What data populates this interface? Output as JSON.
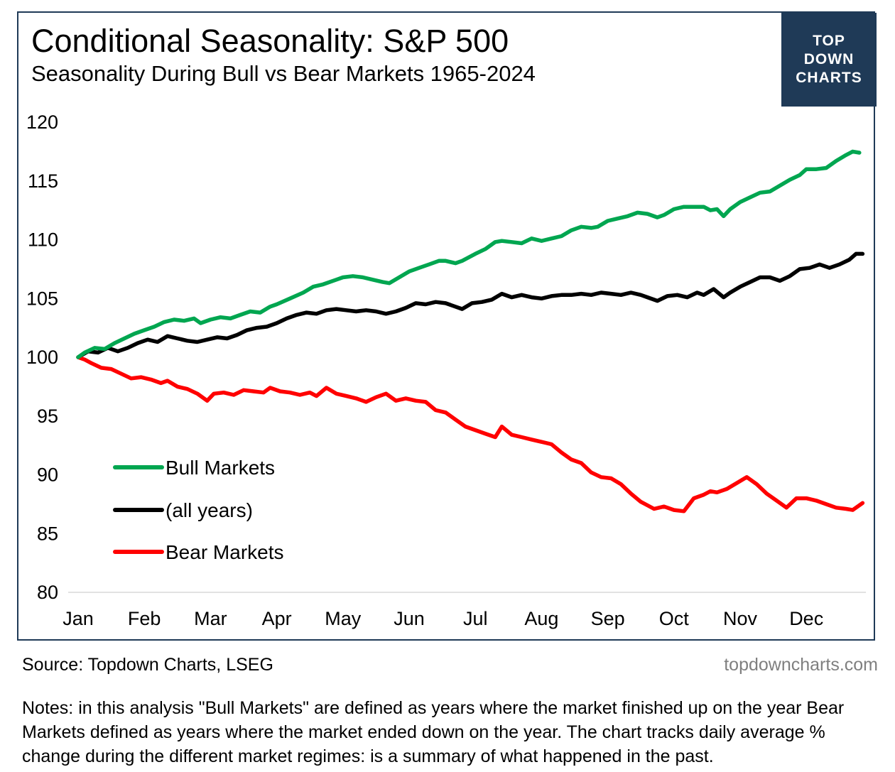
{
  "header": {
    "title": "Conditional Seasonality: S&P 500",
    "subtitle": "Seasonality During Bull vs Bear Markets 1965-2024"
  },
  "logo": {
    "line1": "TOP",
    "line2": "DOWN",
    "line3": "CHARTS"
  },
  "footer": {
    "source": "Source: Topdown Charts, LSEG",
    "site": "topdowncharts.com",
    "notes": "Notes: in this analysis \"Bull Markets\" are defined as years where the market finished up on the year Bear Markets defined as years where the market ended down on the year.  The chart tracks daily average % change during the different market regimes: is a summary of what happened in the past."
  },
  "colors": {
    "bull": "#00a650",
    "all": "#000000",
    "bear": "#ff0000",
    "brand": "#1f3a57"
  },
  "chart_data": {
    "type": "line",
    "title": "Conditional Seasonality: S&P 500",
    "subtitle": "Seasonality During Bull vs Bear Markets 1965-2024",
    "xlabel": "",
    "ylabel": "",
    "categories": [
      "Jan",
      "Feb",
      "Mar",
      "Apr",
      "May",
      "Jun",
      "Jul",
      "Aug",
      "Sep",
      "Oct",
      "Nov",
      "Dec"
    ],
    "ylim": [
      80,
      120
    ],
    "yticks": [
      80,
      85,
      90,
      95,
      100,
      105,
      110,
      115,
      120
    ],
    "grid": false,
    "legend_position": "bottom-left",
    "x_unit": "month (0 = start of Jan)",
    "series": [
      {
        "name": "Bull Markets",
        "color": "#00a650",
        "points": [
          [
            0,
            100
          ],
          [
            0.1,
            100.4
          ],
          [
            0.25,
            100.8
          ],
          [
            0.4,
            100.7
          ],
          [
            0.55,
            101.2
          ],
          [
            0.7,
            101.6
          ],
          [
            0.85,
            102.0
          ],
          [
            1.0,
            102.3
          ],
          [
            1.15,
            102.6
          ],
          [
            1.3,
            103.0
          ],
          [
            1.45,
            103.2
          ],
          [
            1.6,
            103.1
          ],
          [
            1.75,
            103.3
          ],
          [
            1.85,
            102.9
          ],
          [
            2.0,
            103.2
          ],
          [
            2.15,
            103.4
          ],
          [
            2.3,
            103.3
          ],
          [
            2.45,
            103.6
          ],
          [
            2.6,
            103.9
          ],
          [
            2.75,
            103.8
          ],
          [
            2.9,
            104.3
          ],
          [
            3.0,
            104.5
          ],
          [
            3.2,
            105.0
          ],
          [
            3.4,
            105.5
          ],
          [
            3.55,
            106.0
          ],
          [
            3.7,
            106.2
          ],
          [
            3.9,
            106.6
          ],
          [
            4.0,
            106.8
          ],
          [
            4.15,
            106.9
          ],
          [
            4.3,
            106.8
          ],
          [
            4.45,
            106.6
          ],
          [
            4.6,
            106.4
          ],
          [
            4.7,
            106.3
          ],
          [
            4.85,
            106.8
          ],
          [
            5.0,
            107.3
          ],
          [
            5.15,
            107.6
          ],
          [
            5.3,
            107.9
          ],
          [
            5.45,
            108.2
          ],
          [
            5.55,
            108.2
          ],
          [
            5.7,
            108.0
          ],
          [
            5.8,
            108.2
          ],
          [
            6.0,
            108.8
          ],
          [
            6.15,
            109.2
          ],
          [
            6.3,
            109.8
          ],
          [
            6.4,
            109.9
          ],
          [
            6.55,
            109.8
          ],
          [
            6.7,
            109.7
          ],
          [
            6.85,
            110.1
          ],
          [
            7.0,
            109.9
          ],
          [
            7.15,
            110.1
          ],
          [
            7.3,
            110.3
          ],
          [
            7.45,
            110.8
          ],
          [
            7.6,
            111.1
          ],
          [
            7.75,
            111.0
          ],
          [
            7.85,
            111.1
          ],
          [
            8.0,
            111.6
          ],
          [
            8.15,
            111.8
          ],
          [
            8.3,
            112.0
          ],
          [
            8.45,
            112.3
          ],
          [
            8.6,
            112.2
          ],
          [
            8.75,
            111.9
          ],
          [
            8.85,
            112.1
          ],
          [
            9.0,
            112.6
          ],
          [
            9.15,
            112.8
          ],
          [
            9.3,
            112.8
          ],
          [
            9.45,
            112.8
          ],
          [
            9.55,
            112.5
          ],
          [
            9.65,
            112.6
          ],
          [
            9.75,
            112.0
          ],
          [
            9.85,
            112.6
          ],
          [
            10.0,
            113.2
          ],
          [
            10.15,
            113.6
          ],
          [
            10.3,
            114.0
          ],
          [
            10.45,
            114.1
          ],
          [
            10.6,
            114.6
          ],
          [
            10.75,
            115.1
          ],
          [
            10.9,
            115.5
          ],
          [
            11.0,
            116.0
          ],
          [
            11.15,
            116.0
          ],
          [
            11.3,
            116.1
          ],
          [
            11.45,
            116.7
          ],
          [
            11.6,
            117.2
          ],
          [
            11.7,
            117.5
          ],
          [
            11.8,
            117.4
          ]
        ]
      },
      {
        "name": "(all years)",
        "color": "#000000",
        "points": [
          [
            0,
            100
          ],
          [
            0.15,
            100.5
          ],
          [
            0.3,
            100.4
          ],
          [
            0.45,
            100.8
          ],
          [
            0.6,
            100.5
          ],
          [
            0.75,
            100.8
          ],
          [
            0.9,
            101.2
          ],
          [
            1.05,
            101.5
          ],
          [
            1.2,
            101.3
          ],
          [
            1.35,
            101.8
          ],
          [
            1.5,
            101.6
          ],
          [
            1.65,
            101.4
          ],
          [
            1.8,
            101.3
          ],
          [
            1.95,
            101.5
          ],
          [
            2.1,
            101.7
          ],
          [
            2.25,
            101.6
          ],
          [
            2.4,
            101.9
          ],
          [
            2.55,
            102.3
          ],
          [
            2.7,
            102.5
          ],
          [
            2.85,
            102.6
          ],
          [
            3.0,
            102.9
          ],
          [
            3.15,
            103.3
          ],
          [
            3.3,
            103.6
          ],
          [
            3.45,
            103.8
          ],
          [
            3.6,
            103.7
          ],
          [
            3.75,
            104.0
          ],
          [
            3.9,
            104.1
          ],
          [
            4.05,
            104.0
          ],
          [
            4.2,
            103.9
          ],
          [
            4.35,
            104.0
          ],
          [
            4.5,
            103.9
          ],
          [
            4.65,
            103.7
          ],
          [
            4.8,
            103.9
          ],
          [
            4.95,
            104.2
          ],
          [
            5.1,
            104.6
          ],
          [
            5.25,
            104.5
          ],
          [
            5.4,
            104.7
          ],
          [
            5.55,
            104.6
          ],
          [
            5.7,
            104.3
          ],
          [
            5.8,
            104.1
          ],
          [
            5.95,
            104.6
          ],
          [
            6.1,
            104.7
          ],
          [
            6.25,
            104.9
          ],
          [
            6.4,
            105.4
          ],
          [
            6.55,
            105.1
          ],
          [
            6.7,
            105.3
          ],
          [
            6.85,
            105.1
          ],
          [
            7.0,
            105.0
          ],
          [
            7.15,
            105.2
          ],
          [
            7.3,
            105.3
          ],
          [
            7.45,
            105.3
          ],
          [
            7.6,
            105.4
          ],
          [
            7.75,
            105.3
          ],
          [
            7.9,
            105.5
          ],
          [
            8.05,
            105.4
          ],
          [
            8.2,
            105.3
          ],
          [
            8.35,
            105.5
          ],
          [
            8.5,
            105.3
          ],
          [
            8.6,
            105.1
          ],
          [
            8.75,
            104.8
          ],
          [
            8.9,
            105.2
          ],
          [
            9.05,
            105.3
          ],
          [
            9.2,
            105.1
          ],
          [
            9.35,
            105.5
          ],
          [
            9.45,
            105.3
          ],
          [
            9.6,
            105.8
          ],
          [
            9.75,
            105.1
          ],
          [
            9.85,
            105.5
          ],
          [
            10.0,
            106.0
          ],
          [
            10.15,
            106.4
          ],
          [
            10.3,
            106.8
          ],
          [
            10.45,
            106.8
          ],
          [
            10.6,
            106.5
          ],
          [
            10.75,
            106.9
          ],
          [
            10.9,
            107.5
          ],
          [
            11.05,
            107.6
          ],
          [
            11.2,
            107.9
          ],
          [
            11.35,
            107.6
          ],
          [
            11.5,
            107.9
          ],
          [
            11.65,
            108.3
          ],
          [
            11.75,
            108.8
          ],
          [
            11.85,
            108.8
          ]
        ]
      },
      {
        "name": "Bear Markets",
        "color": "#ff0000",
        "points": [
          [
            0,
            100
          ],
          [
            0.1,
            99.8
          ],
          [
            0.2,
            99.5
          ],
          [
            0.35,
            99.1
          ],
          [
            0.5,
            99.0
          ],
          [
            0.65,
            98.6
          ],
          [
            0.8,
            98.2
          ],
          [
            0.95,
            98.3
          ],
          [
            1.1,
            98.1
          ],
          [
            1.25,
            97.8
          ],
          [
            1.35,
            98.0
          ],
          [
            1.5,
            97.5
          ],
          [
            1.65,
            97.3
          ],
          [
            1.8,
            96.9
          ],
          [
            1.95,
            96.3
          ],
          [
            2.05,
            96.9
          ],
          [
            2.2,
            97.0
          ],
          [
            2.35,
            96.8
          ],
          [
            2.5,
            97.2
          ],
          [
            2.65,
            97.1
          ],
          [
            2.8,
            97.0
          ],
          [
            2.9,
            97.4
          ],
          [
            3.05,
            97.1
          ],
          [
            3.2,
            97.0
          ],
          [
            3.35,
            96.8
          ],
          [
            3.5,
            97.0
          ],
          [
            3.6,
            96.7
          ],
          [
            3.75,
            97.4
          ],
          [
            3.9,
            96.9
          ],
          [
            4.05,
            96.7
          ],
          [
            4.2,
            96.5
          ],
          [
            4.35,
            96.2
          ],
          [
            4.5,
            96.6
          ],
          [
            4.65,
            96.9
          ],
          [
            4.8,
            96.3
          ],
          [
            4.95,
            96.5
          ],
          [
            5.1,
            96.3
          ],
          [
            5.25,
            96.2
          ],
          [
            5.4,
            95.5
          ],
          [
            5.55,
            95.3
          ],
          [
            5.7,
            94.7
          ],
          [
            5.85,
            94.1
          ],
          [
            6.0,
            93.8
          ],
          [
            6.15,
            93.5
          ],
          [
            6.3,
            93.2
          ],
          [
            6.4,
            94.1
          ],
          [
            6.55,
            93.4
          ],
          [
            6.7,
            93.2
          ],
          [
            6.85,
            93.0
          ],
          [
            7.0,
            92.8
          ],
          [
            7.15,
            92.6
          ],
          [
            7.3,
            91.9
          ],
          [
            7.45,
            91.3
          ],
          [
            7.6,
            91.0
          ],
          [
            7.75,
            90.2
          ],
          [
            7.9,
            89.8
          ],
          [
            8.05,
            89.7
          ],
          [
            8.2,
            89.2
          ],
          [
            8.35,
            88.4
          ],
          [
            8.5,
            87.7
          ],
          [
            8.6,
            87.4
          ],
          [
            8.7,
            87.1
          ],
          [
            8.85,
            87.3
          ],
          [
            9.0,
            87.0
          ],
          [
            9.15,
            86.9
          ],
          [
            9.3,
            88.0
          ],
          [
            9.45,
            88.3
          ],
          [
            9.55,
            88.6
          ],
          [
            9.65,
            88.5
          ],
          [
            9.8,
            88.8
          ],
          [
            9.95,
            89.3
          ],
          [
            10.1,
            89.8
          ],
          [
            10.25,
            89.2
          ],
          [
            10.4,
            88.4
          ],
          [
            10.55,
            87.8
          ],
          [
            10.7,
            87.2
          ],
          [
            10.85,
            88.0
          ],
          [
            11.0,
            88.0
          ],
          [
            11.15,
            87.8
          ],
          [
            11.3,
            87.5
          ],
          [
            11.45,
            87.2
          ],
          [
            11.6,
            87.1
          ],
          [
            11.7,
            87.0
          ],
          [
            11.85,
            87.6
          ]
        ]
      }
    ]
  }
}
